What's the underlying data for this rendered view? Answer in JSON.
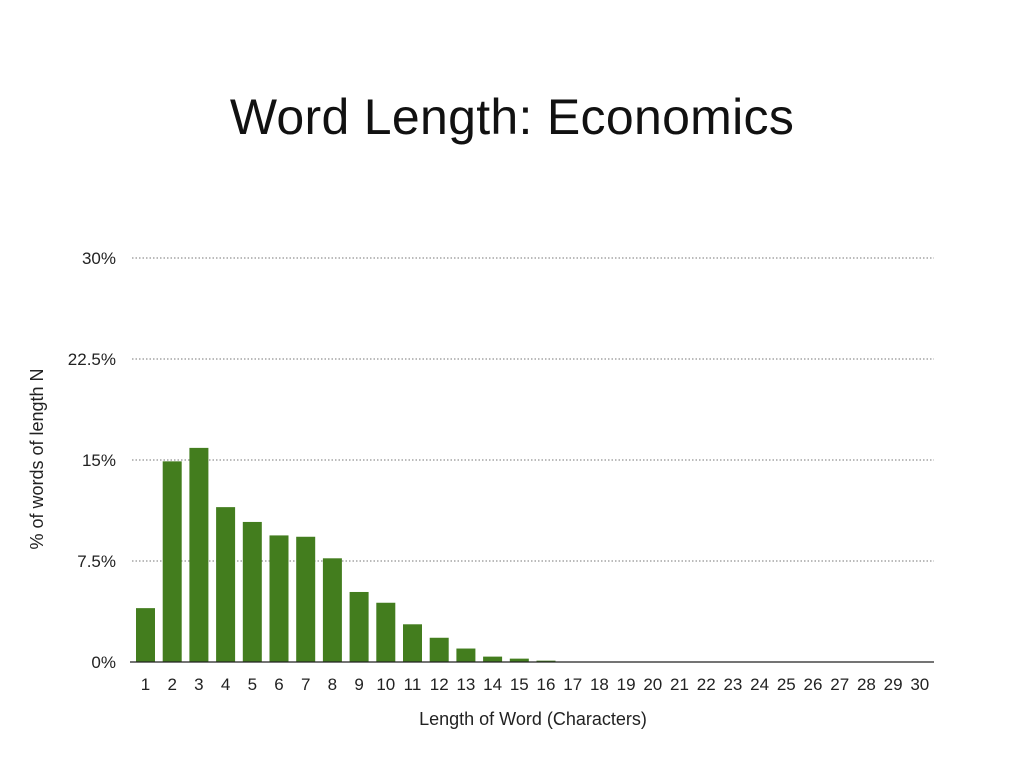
{
  "title": "Word Length: Economics",
  "colors": {
    "bar": "#437d1e",
    "background": "#ffffff"
  },
  "chart_data": {
    "type": "bar",
    "title": "Word Length: Economics",
    "xlabel": "Length of Word (Characters)",
    "ylabel": "% of words of length N",
    "ylim": [
      0,
      30
    ],
    "yticks": [
      0,
      7.5,
      15,
      22.5,
      30
    ],
    "ytick_labels": [
      "0%",
      "7.5%",
      "15%",
      "22.5%",
      "30%"
    ],
    "grid": true,
    "categories": [
      "1",
      "2",
      "3",
      "4",
      "5",
      "6",
      "7",
      "8",
      "9",
      "10",
      "11",
      "12",
      "13",
      "14",
      "15",
      "16",
      "17",
      "18",
      "19",
      "20",
      "21",
      "22",
      "23",
      "24",
      "25",
      "26",
      "27",
      "28",
      "29",
      "30"
    ],
    "values": [
      4.0,
      14.9,
      15.9,
      11.5,
      10.4,
      9.4,
      9.3,
      7.7,
      5.2,
      4.4,
      2.8,
      1.8,
      1.0,
      0.4,
      0.25,
      0.1,
      0.03,
      0.02,
      0.01,
      0.01,
      0,
      0,
      0,
      0,
      0,
      0,
      0,
      0,
      0,
      0
    ]
  }
}
